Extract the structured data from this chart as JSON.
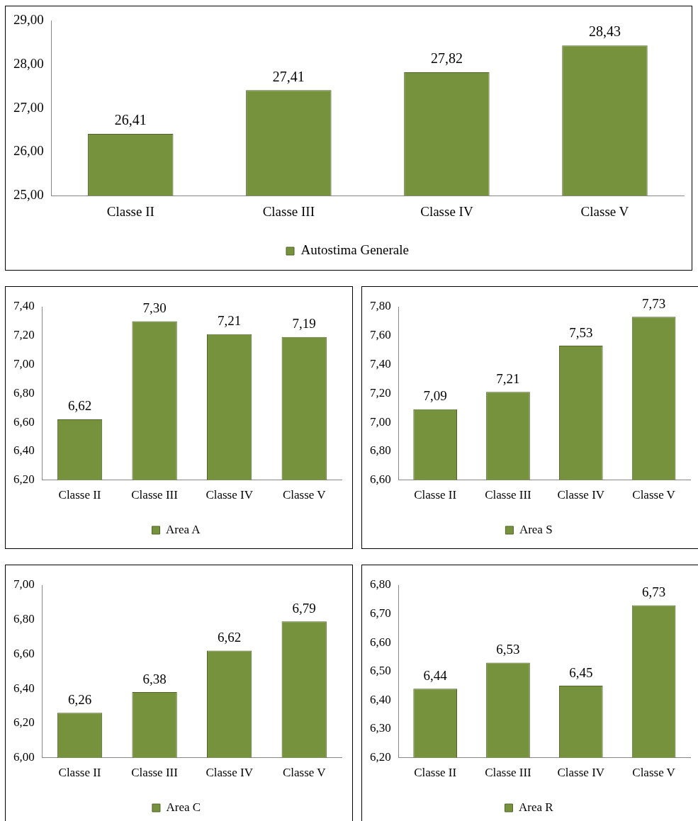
{
  "chart_data": [
    {
      "type": "bar",
      "categories": [
        "Classe II",
        "Classe III",
        "Classe IV",
        "Classe V"
      ],
      "series": [
        {
          "name": "Autostima Generale",
          "color": "#76923c",
          "values": [
            26.41,
            27.41,
            27.82,
            28.43
          ],
          "value_labels": [
            "26,41",
            "27,41",
            "27,82",
            "28,43"
          ]
        }
      ],
      "ylim": [
        25,
        29
      ],
      "yticks": [
        {
          "value": 25,
          "label": "25,00"
        },
        {
          "value": 26,
          "label": "26,00"
        },
        {
          "value": 27,
          "label": "27,00"
        },
        {
          "value": 28,
          "label": "28,00"
        },
        {
          "value": 29,
          "label": "29,00"
        }
      ],
      "legend": "bottom"
    },
    {
      "type": "bar",
      "categories": [
        "Classe II",
        "Classe III",
        "Classe IV",
        "Classe V"
      ],
      "series": [
        {
          "name": "Area A",
          "color": "#76923c",
          "values": [
            6.62,
            7.3,
            7.21,
            7.19
          ],
          "value_labels": [
            "6,62",
            "7,30",
            "7,21",
            "7,19"
          ]
        }
      ],
      "ylim": [
        6.2,
        7.4
      ],
      "yticks": [
        {
          "value": 6.2,
          "label": "6,20"
        },
        {
          "value": 6.4,
          "label": "6,40"
        },
        {
          "value": 6.6,
          "label": "6,60"
        },
        {
          "value": 6.8,
          "label": "6,80"
        },
        {
          "value": 7.0,
          "label": "7,00"
        },
        {
          "value": 7.2,
          "label": "7,20"
        },
        {
          "value": 7.4,
          "label": "7,40"
        }
      ],
      "legend": "bottom"
    },
    {
      "type": "bar",
      "categories": [
        "Classe II",
        "Classe III",
        "Classe IV",
        "Classe V"
      ],
      "series": [
        {
          "name": "Area S",
          "color": "#76923c",
          "values": [
            7.09,
            7.21,
            7.53,
            7.73
          ],
          "value_labels": [
            "7,09",
            "7,21",
            "7,53",
            "7,73"
          ]
        }
      ],
      "ylim": [
        6.6,
        7.8
      ],
      "yticks": [
        {
          "value": 6.6,
          "label": "6,60"
        },
        {
          "value": 6.8,
          "label": "6,80"
        },
        {
          "value": 7.0,
          "label": "7,00"
        },
        {
          "value": 7.2,
          "label": "7,20"
        },
        {
          "value": 7.4,
          "label": "7,40"
        },
        {
          "value": 7.6,
          "label": "7,60"
        },
        {
          "value": 7.8,
          "label": "7,80"
        }
      ],
      "legend": "bottom"
    },
    {
      "type": "bar",
      "categories": [
        "Classe II",
        "Classe III",
        "Classe IV",
        "Classe V"
      ],
      "series": [
        {
          "name": "Area C",
          "color": "#76923c",
          "values": [
            6.26,
            6.38,
            6.62,
            6.79
          ],
          "value_labels": [
            "6,26",
            "6,38",
            "6,62",
            "6,79"
          ]
        }
      ],
      "ylim": [
        6.0,
        7.0
      ],
      "yticks": [
        {
          "value": 6.0,
          "label": "6,00"
        },
        {
          "value": 6.2,
          "label": "6,20"
        },
        {
          "value": 6.4,
          "label": "6,40"
        },
        {
          "value": 6.6,
          "label": "6,60"
        },
        {
          "value": 6.8,
          "label": "6,80"
        },
        {
          "value": 7.0,
          "label": "7,00"
        }
      ],
      "legend": "bottom"
    },
    {
      "type": "bar",
      "categories": [
        "Classe II",
        "Classe III",
        "Classe IV",
        "Classe V"
      ],
      "series": [
        {
          "name": "Area R",
          "color": "#76923c",
          "values": [
            6.44,
            6.53,
            6.45,
            6.73
          ],
          "value_labels": [
            "6,44",
            "6,53",
            "6,45",
            "6,73"
          ]
        }
      ],
      "ylim": [
        6.2,
        6.8
      ],
      "yticks": [
        {
          "value": 6.2,
          "label": "6,20"
        },
        {
          "value": 6.3,
          "label": "6,30"
        },
        {
          "value": 6.4,
          "label": "6,40"
        },
        {
          "value": 6.5,
          "label": "6,50"
        },
        {
          "value": 6.6,
          "label": "6,60"
        },
        {
          "value": 6.7,
          "label": "6,70"
        },
        {
          "value": 6.8,
          "label": "6,80"
        }
      ],
      "legend": "bottom"
    }
  ]
}
